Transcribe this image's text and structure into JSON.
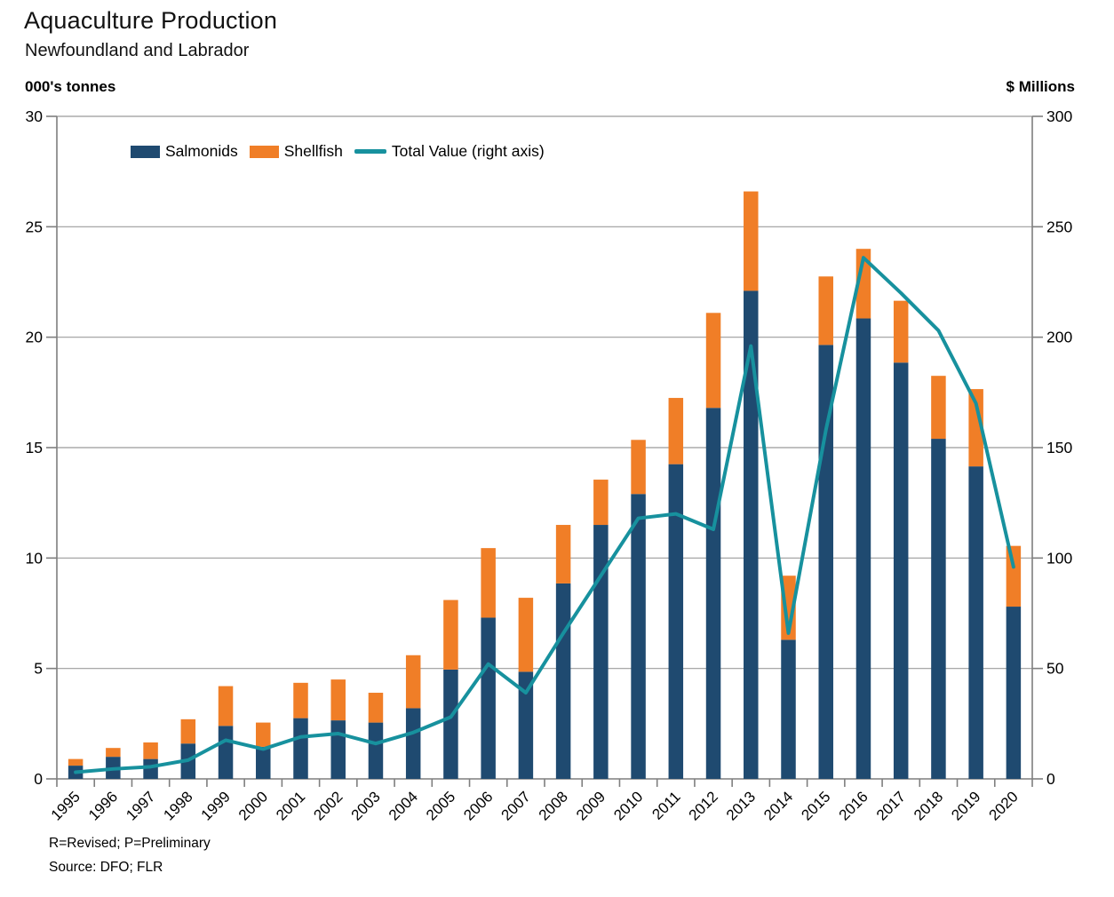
{
  "page": {
    "title": "Aquaculture Production",
    "subtitle": "Newfoundland and Labrador",
    "left_axis_unit": "000's tonnes",
    "right_axis_unit": "$ Millions",
    "footnote_revised": "R=Revised; P=Preliminary",
    "footnote_source": "Source: DFO; FLR"
  },
  "legend": [
    {
      "label": "Salmonids",
      "swatch": "box",
      "color": "#1F4A70"
    },
    {
      "label": "Shellfish",
      "swatch": "box",
      "color": "#F07E27"
    },
    {
      "label": "Total Value (right axis)",
      "swatch": "line",
      "color": "#17919E"
    }
  ],
  "colors": {
    "salmonids": "#1F4A70",
    "shellfish": "#F07E27",
    "total_value_line": "#17919E",
    "gridline": "#9b9b9b",
    "plot_border": "#7f7f7f",
    "text": "#000000"
  },
  "chart_data": {
    "type": "bar",
    "subtype": "stacked-bars-with-line",
    "title": "Aquaculture Production",
    "subtitle": "Newfoundland and Labrador",
    "grid": true,
    "legend_position": "top-inside",
    "categories": [
      "1995",
      "1996",
      "1997",
      "1998",
      "1999",
      "2000",
      "2001",
      "2002",
      "2003",
      "2004",
      "2005",
      "2006",
      "2007",
      "2008",
      "2009",
      "2010",
      "2011",
      "2012",
      "2013",
      "2014",
      "2015",
      "2016",
      "2017",
      "2018",
      "2019",
      "2020"
    ],
    "left_axis": {
      "label": "000's tonnes",
      "min": 0,
      "max": 30,
      "step": 5,
      "ticks": [
        0,
        5,
        10,
        15,
        20,
        25,
        30
      ]
    },
    "right_axis": {
      "label": "$ Millions",
      "min": 0,
      "max": 300,
      "step": 50,
      "ticks": [
        0,
        50,
        100,
        150,
        200,
        250,
        300
      ]
    },
    "series": [
      {
        "name": "Salmonids",
        "type": "bar",
        "stack": true,
        "axis": "left",
        "color": "#1F4A70",
        "values": [
          0.6,
          1.0,
          0.9,
          1.6,
          2.4,
          1.45,
          2.75,
          2.65,
          2.55,
          3.2,
          4.95,
          7.3,
          4.85,
          8.85,
          11.5,
          12.9,
          14.25,
          16.8,
          22.1,
          6.3,
          19.65,
          20.85,
          18.85,
          15.4,
          14.15,
          7.8
        ]
      },
      {
        "name": "Shellfish",
        "type": "bar",
        "stack": true,
        "axis": "left",
        "color": "#F07E27",
        "values": [
          0.3,
          0.4,
          0.75,
          1.1,
          1.8,
          1.1,
          1.6,
          1.85,
          1.35,
          2.4,
          3.15,
          3.15,
          3.35,
          2.65,
          2.05,
          2.45,
          3.0,
          4.3,
          4.5,
          2.9,
          3.1,
          3.15,
          2.8,
          2.85,
          3.5,
          2.75
        ]
      },
      {
        "name": "Total Value (right axis)",
        "type": "line",
        "axis": "right",
        "color": "#17919E",
        "values": [
          3,
          4.5,
          5.5,
          8.5,
          17.5,
          13.5,
          19,
          20.5,
          16,
          21,
          28,
          52,
          39,
          66,
          92,
          118,
          120,
          113,
          196,
          66,
          158,
          236,
          220,
          203,
          170,
          96
        ]
      }
    ]
  }
}
